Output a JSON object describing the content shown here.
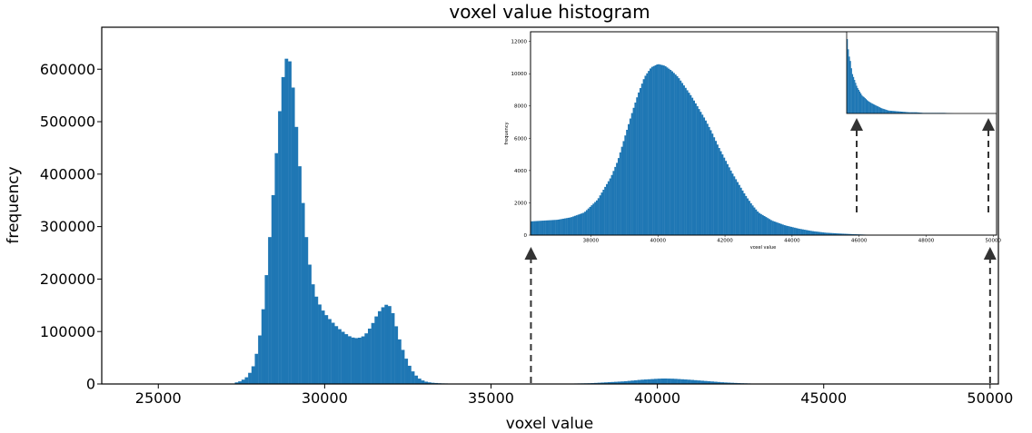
{
  "chart_data": [
    {
      "id": "main",
      "type": "bar",
      "title": "voxel value histogram",
      "xlabel": "voxel value",
      "ylabel": "frequency",
      "xlim": [
        23300,
        50250
      ],
      "ylim": [
        0,
        680000
      ],
      "xticks": [
        25000,
        30000,
        35000,
        40000,
        45000,
        50000
      ],
      "yticks": [
        0,
        100000,
        200000,
        300000,
        400000,
        500000,
        600000
      ],
      "color": "#1f77b4",
      "grid": false,
      "bin_width": 100,
      "series": [
        {
          "x": [
            27300,
            27500,
            27700,
            27900,
            28100,
            28300,
            28500,
            28600,
            28700,
            28800,
            28900,
            29000,
            29100,
            29200,
            29300,
            29400,
            29500,
            29600,
            29700,
            29800,
            29900,
            30000,
            30200,
            30400,
            30600,
            30800,
            31000,
            31200,
            31400,
            31600,
            31800,
            31900,
            32000,
            32100,
            32200,
            32400,
            32600,
            32800,
            33000,
            33200,
            33500,
            33800,
            34100,
            34500,
            35000,
            35500,
            36000,
            37000,
            38000,
            39000,
            39500,
            40000,
            40200,
            40500,
            41000,
            41500,
            42000,
            42500,
            43000,
            43500,
            44000
          ],
          "values": [
            2000,
            6000,
            15000,
            40000,
            110000,
            240000,
            400000,
            480000,
            560000,
            610000,
            630000,
            600000,
            530000,
            450000,
            380000,
            310000,
            250000,
            205000,
            175000,
            158000,
            145000,
            135000,
            120000,
            107000,
            97000,
            89000,
            87000,
            92000,
            110000,
            135000,
            150000,
            152000,
            145000,
            125000,
            95000,
            55000,
            28000,
            12000,
            5000,
            2500,
            1200,
            800,
            500,
            300,
            200,
            100,
            0,
            300,
            1500,
            5000,
            8000,
            10000,
            10500,
            10000,
            8000,
            5500,
            3000,
            1500,
            600,
            200,
            0
          ]
        }
      ],
      "annotations": [
        {
          "type": "arrow",
          "x": 36200,
          "style": "dashed"
        },
        {
          "type": "arrow",
          "x": 50000,
          "style": "dashed"
        }
      ]
    },
    {
      "id": "inset-1",
      "type": "bar",
      "title": "",
      "xlabel": "voxel value",
      "ylabel": "frequency",
      "xlim": [
        36200,
        50100
      ],
      "ylim": [
        0,
        12600
      ],
      "xticks": [
        38000,
        40000,
        42000,
        44000,
        46000,
        48000,
        50000
      ],
      "yticks": [
        0,
        2000,
        4000,
        6000,
        8000,
        10000,
        12000
      ],
      "color": "#1f77b4",
      "bin_width": 50,
      "series": [
        {
          "x": [
            36200,
            36600,
            37000,
            37400,
            37800,
            38200,
            38600,
            38800,
            39000,
            39200,
            39400,
            39600,
            39800,
            40000,
            40200,
            40400,
            40600,
            40800,
            41000,
            41200,
            41400,
            41600,
            41800,
            42000,
            42200,
            42400,
            42600,
            42800,
            43000,
            43400,
            43800,
            44200,
            44600,
            45000,
            45400,
            45800,
            46200,
            46600,
            47000
          ],
          "values": [
            850,
            900,
            950,
            1100,
            1400,
            2200,
            3600,
            4600,
            6000,
            7400,
            8700,
            9800,
            10400,
            10600,
            10500,
            10200,
            9800,
            9200,
            8600,
            7900,
            7200,
            6400,
            5500,
            4700,
            3900,
            3200,
            2500,
            1900,
            1400,
            900,
            600,
            400,
            250,
            150,
            100,
            60,
            30,
            10,
            0
          ]
        }
      ],
      "annotations": [
        {
          "type": "arrow",
          "x": 46000,
          "style": "dashed"
        },
        {
          "type": "arrow",
          "x": 50000,
          "style": "dashed"
        }
      ]
    },
    {
      "id": "inset-2",
      "type": "bar",
      "xlim": [
        45800,
        50100
      ],
      "ylim": [
        0,
        140
      ],
      "color": "#1f77b4",
      "bin_width": 30,
      "series": [
        {
          "x": [
            45800,
            45830,
            45860,
            45890,
            45920,
            45950,
            45980,
            46010,
            46040,
            46070,
            46100,
            46150,
            46200,
            46250,
            46300,
            46400,
            46500,
            46600,
            46700,
            46800,
            46900,
            47000,
            47200,
            47400,
            47600,
            47800,
            48000,
            48300,
            48600,
            48900,
            49200
          ],
          "values": [
            135,
            120,
            100,
            95,
            85,
            70,
            65,
            60,
            55,
            50,
            45,
            40,
            35,
            30,
            28,
            22,
            18,
            15,
            12,
            9,
            7,
            5,
            4,
            3,
            2,
            2,
            1,
            1,
            1,
            0,
            0
          ]
        }
      ]
    }
  ]
}
